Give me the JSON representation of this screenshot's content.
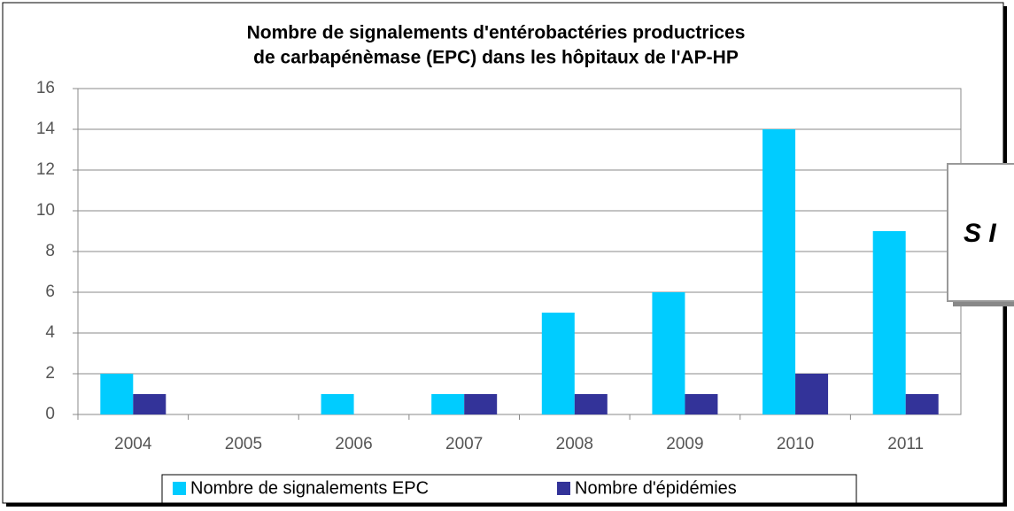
{
  "chart_data": {
    "type": "bar",
    "title": "Nombre de signalements d'entérobactéries productrices",
    "subtitle": "de carbapénèmase (EPC) dans les hôpitaux de l'AP-HP",
    "categories": [
      "2004",
      "2005",
      "2006",
      "2007",
      "2008",
      "2009",
      "2010",
      "2011"
    ],
    "series": [
      {
        "name": "Nombre de signalements EPC",
        "color": "#00ccff",
        "values": [
          2,
          0,
          1,
          1,
          5,
          6,
          14,
          9
        ]
      },
      {
        "name": "Nombre d'épidémies",
        "color": "#333399",
        "values": [
          1,
          0,
          0,
          1,
          1,
          1,
          2,
          1
        ]
      }
    ],
    "ylim": [
      0,
      16
    ],
    "yticks": [
      0,
      2,
      4,
      6,
      8,
      10,
      12,
      14,
      16
    ],
    "grid": true,
    "legend": "bottom",
    "overlay_text": "S I"
  }
}
